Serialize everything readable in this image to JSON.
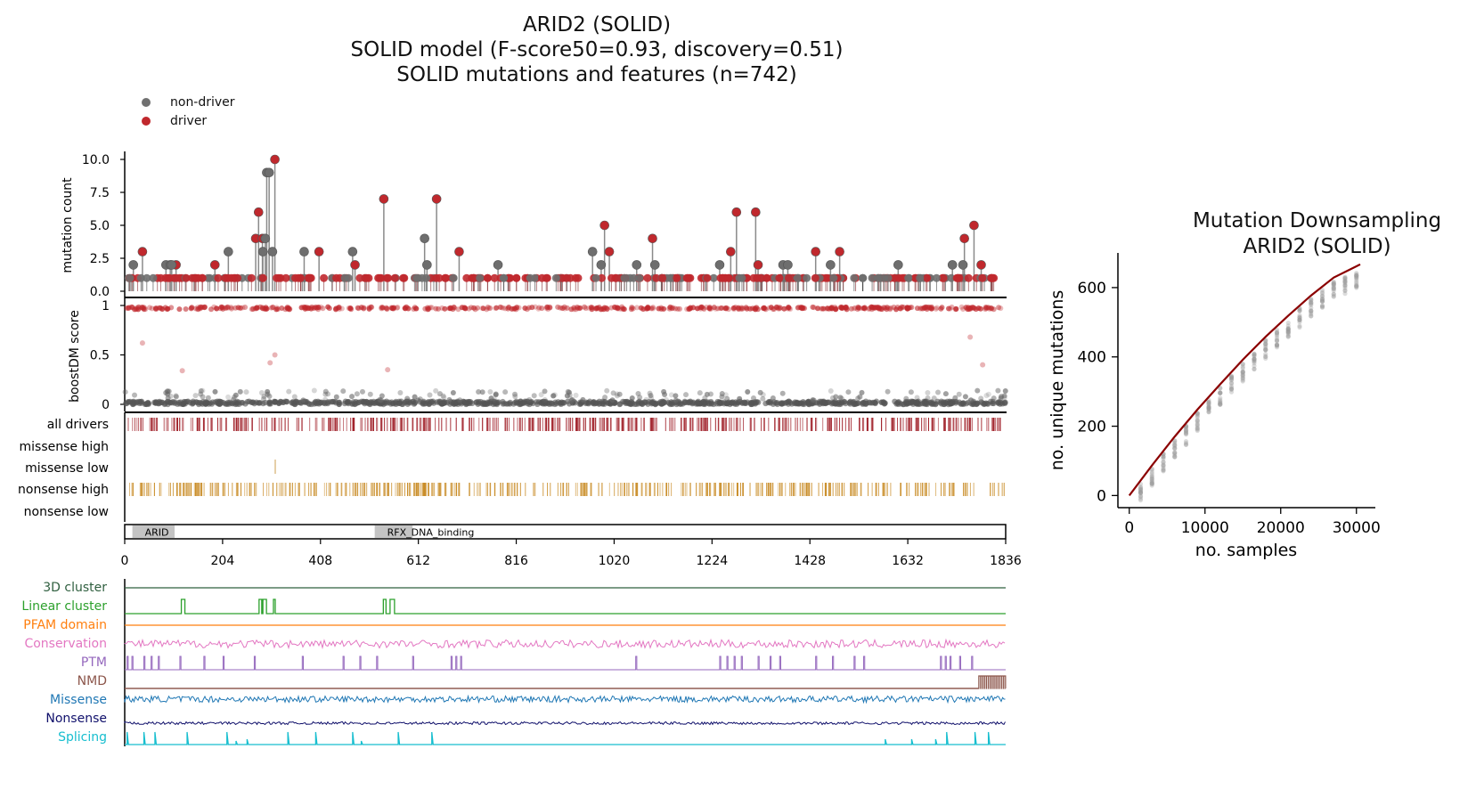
{
  "title": {
    "line1": "ARID2 (SOLID)",
    "line2": "SOLID model (F-score50=0.93, discovery=0.51)",
    "line3": "SOLID mutations and features (n=742)"
  },
  "legend": [
    {
      "label": "non-driver",
      "color": "#707070"
    },
    {
      "label": "driver",
      "color": "#c0282d"
    }
  ],
  "colors": {
    "driver": "#c0282d",
    "nondriver": "#6e6e6e",
    "all_drivers_band": "#9e1b24",
    "nonsense_band": "#c88a22",
    "missense_low_band": "#d9b57a",
    "domain_fill": "#c4c4c4",
    "downsampling_line": "#8b0000"
  },
  "lollipop": {
    "ylabel": "mutation count",
    "yticks": [
      "10.0",
      "7.5",
      "5.0",
      "2.5",
      "0.0"
    ]
  },
  "boost": {
    "ylabel": "boostDM score",
    "yticks": [
      "1",
      "0.5",
      "0"
    ]
  },
  "bands": [
    {
      "label": "all drivers"
    },
    {
      "label": "missense high"
    },
    {
      "label": "missense low"
    },
    {
      "label": "nonsense high"
    },
    {
      "label": "nonsense low"
    }
  ],
  "domains": [
    {
      "name": "ARID",
      "start": 16,
      "end": 104
    },
    {
      "name": "RFX_DNA_binding",
      "start": 521,
      "end": 600
    }
  ],
  "protein_axis": {
    "ticks": [
      "0",
      "204",
      "408",
      "612",
      "816",
      "1020",
      "1224",
      "1428",
      "1632",
      "1836"
    ]
  },
  "features": [
    {
      "label": "3D cluster",
      "color": "#2f5f3f"
    },
    {
      "label": "Linear cluster",
      "color": "#2ca02c"
    },
    {
      "label": "PFAM domain",
      "color": "#ff7f0e"
    },
    {
      "label": "Conservation",
      "color": "#e377c2"
    },
    {
      "label": "PTM",
      "color": "#9467bd"
    },
    {
      "label": "NMD",
      "color": "#8c564b"
    },
    {
      "label": "Missense",
      "color": "#1f77b4"
    },
    {
      "label": "Nonsense",
      "color": "#10106b"
    },
    {
      "label": "Splicing",
      "color": "#17becf"
    }
  ],
  "chart_data": [
    {
      "type": "scatter",
      "title": "ARID2 (SOLID)",
      "xlabel": "",
      "ylabel": "mutation count",
      "xlim": [
        0,
        1836
      ],
      "ylim": [
        0,
        10
      ],
      "series": [
        {
          "name": "driver",
          "x": [
            37,
            273,
            279,
            287,
            313,
            540,
            650,
            1000,
            1010,
            1100,
            1263,
            1275,
            1315,
            1320,
            1750,
            1770,
            1785,
            107,
            188,
            405,
            480,
            697,
            1440,
            1490
          ],
          "y": [
            3,
            4,
            6,
            4,
            10,
            7,
            7,
            5,
            3,
            4,
            3,
            6,
            6,
            2,
            4,
            5,
            2,
            2,
            2,
            3,
            2,
            3,
            3,
            3
          ]
        },
        {
          "name": "non-driver",
          "x": [
            18,
            86,
            95,
            98,
            216,
            288,
            293,
            296,
            301,
            308,
            374,
            475,
            625,
            630,
            778,
            975,
            993,
            1067,
            1105,
            1240,
            1372,
            1382,
            1471,
            1612,
            1725,
            1747
          ],
          "y": [
            2,
            2,
            2,
            2,
            3,
            3,
            4,
            9,
            9,
            3,
            3,
            3,
            4,
            2,
            2,
            3,
            2,
            2,
            2,
            2,
            2,
            2,
            2,
            2,
            2,
            2
          ]
        }
      ]
    },
    {
      "type": "line",
      "title": "Mutation Downsampling ARID2 (SOLID)",
      "xlabel": "no. samples",
      "ylabel": "no. unique mutations",
      "xlim": [
        -1500,
        32500
      ],
      "ylim": [
        -35,
        700
      ],
      "xticks": [
        0,
        10000,
        20000,
        30000
      ],
      "yticks": [
        0,
        200,
        400,
        600
      ],
      "series": [
        {
          "name": "",
          "x": [
            0,
            3000,
            6000,
            9000,
            12000,
            15000,
            18000,
            21000,
            24000,
            27000,
            30500
          ],
          "y": [
            0,
            87,
            170,
            248,
            321,
            392,
            458,
            519,
            577,
            629,
            667
          ]
        }
      ]
    }
  ]
}
